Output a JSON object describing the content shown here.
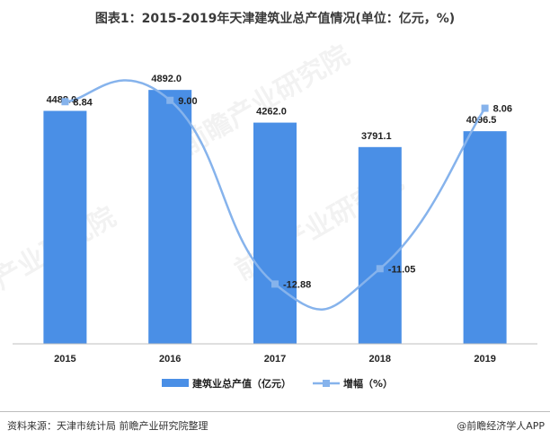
{
  "title": "图表1：2015-2019年天津建筑业总产值情况(单位：亿元，%)",
  "source": "资料来源：天津市统计局 前瞻产业研究院整理",
  "brand": "@前瞻经济学人APP",
  "watermark": "前瞻产业研究院",
  "colors": {
    "bar": "#4a8fe6",
    "line": "#86b3ec",
    "axis": "#bfbfbf"
  },
  "chart_data": {
    "type": "bar+line",
    "categories": [
      "2015",
      "2016",
      "2017",
      "2018",
      "2019"
    ],
    "series": [
      {
        "name": "建筑业总产值（亿元）",
        "type": "bar",
        "values": [
          4488.0,
          4892.0,
          4262.0,
          3791.1,
          4096.5
        ],
        "labels": [
          "4488.0",
          "4892.0",
          "4262.0",
          "3791.1",
          "4096.5"
        ]
      },
      {
        "name": "增幅（%）",
        "type": "line",
        "smooth": true,
        "values": [
          8.84,
          9.0,
          -12.88,
          -11.05,
          8.06
        ],
        "labels": [
          "8.84",
          "9.00",
          "-12.88",
          "-11.05",
          "8.06"
        ]
      }
    ],
    "bar_ylim": [
      0,
      5500
    ],
    "line_ylim": [
      -20,
      14
    ],
    "grid": false,
    "legend": "bottom"
  }
}
